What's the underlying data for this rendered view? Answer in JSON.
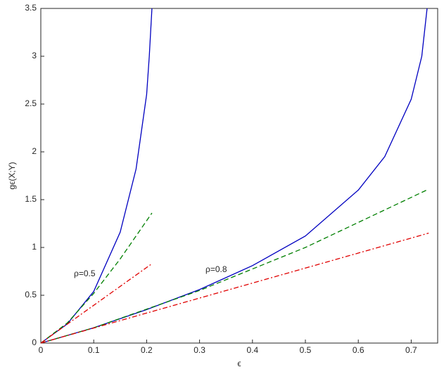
{
  "chart_data": {
    "type": "line",
    "xlabel": "ϵ",
    "ylabel": "gϵ(X;Y)",
    "annotations": [
      "ρ=0.5",
      "ρ=0.8"
    ],
    "xlim": [
      0,
      0.75
    ],
    "ylim": [
      0,
      3.5
    ],
    "xticks": [
      0,
      0.1,
      0.2,
      0.3,
      0.4,
      0.5,
      0.6,
      0.7
    ],
    "yticks": [
      0,
      0.5,
      1,
      1.5,
      2,
      2.5,
      3,
      3.5
    ],
    "series": [
      {
        "color": "#0000c0",
        "dash": "solid",
        "x": [
          0,
          0.05,
          0.1,
          0.15,
          0.18,
          0.2,
          0.205,
          0.21
        ],
        "values": [
          0,
          0.2,
          0.54,
          1.16,
          1.82,
          2.6,
          3.0,
          3.5
        ]
      },
      {
        "color": "#007f00",
        "dash": "dashed",
        "x": [
          0,
          0.05,
          0.1,
          0.15,
          0.21
        ],
        "values": [
          0,
          0.21,
          0.52,
          0.88,
          1.36
        ]
      },
      {
        "color": "#e00000",
        "dash": "dashdot",
        "x": [
          0,
          0.21
        ],
        "values": [
          0,
          0.83
        ]
      },
      {
        "color": "#0000c0",
        "dash": "solid",
        "x": [
          0,
          0.1,
          0.2,
          0.3,
          0.4,
          0.5,
          0.6,
          0.65,
          0.7,
          0.72,
          0.73
        ],
        "values": [
          0,
          0.16,
          0.35,
          0.56,
          0.81,
          1.12,
          1.6,
          1.95,
          2.55,
          3.0,
          3.5
        ]
      },
      {
        "color": "#007f00",
        "dash": "dashed",
        "x": [
          0,
          0.1,
          0.3,
          0.5,
          0.733
        ],
        "values": [
          0,
          0.16,
          0.55,
          1.0,
          1.61
        ]
      },
      {
        "color": "#e00000",
        "dash": "dashdot",
        "x": [
          0,
          0.733
        ],
        "values": [
          0,
          1.15
        ]
      }
    ]
  }
}
